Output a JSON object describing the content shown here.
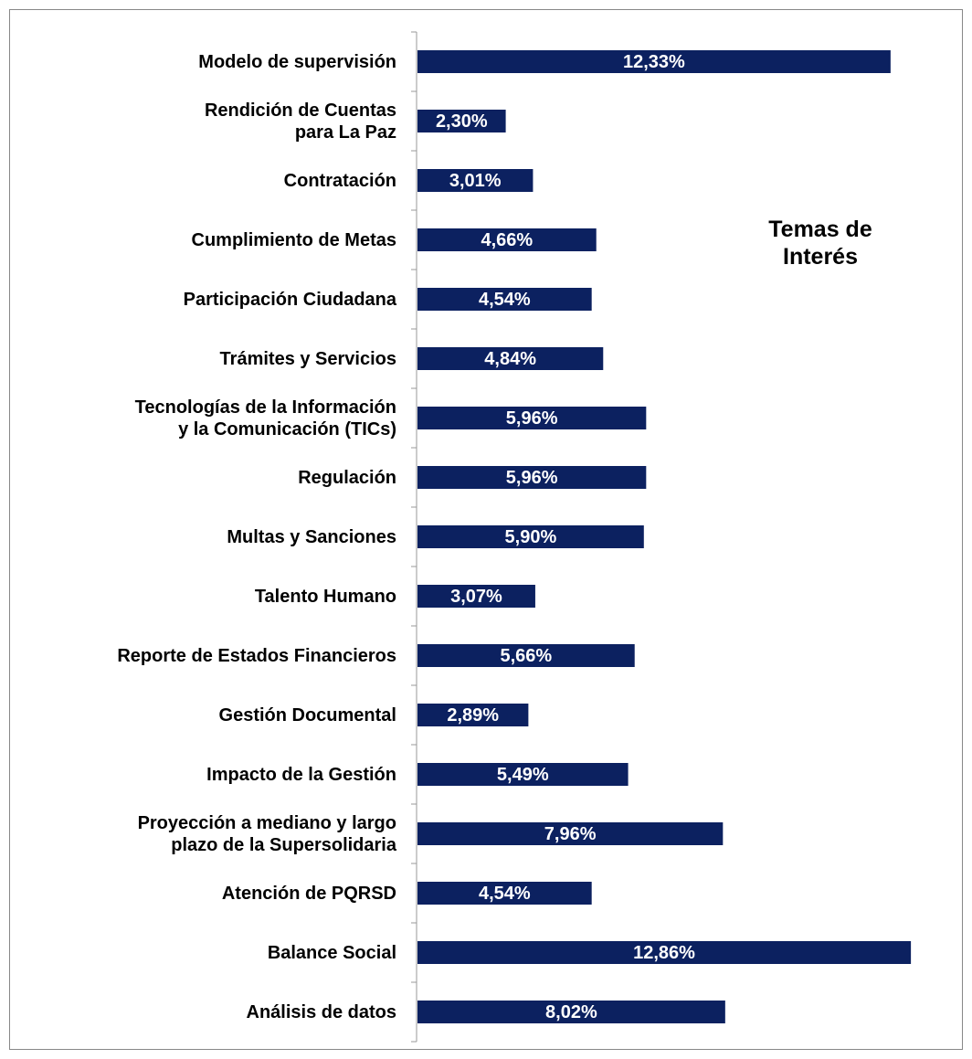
{
  "chart_data": {
    "type": "barh",
    "annotation": "Temas de\nInterés",
    "categories": [
      "Modelo de supervisión",
      "Rendición de Cuentas\npara La Paz",
      "Contratación",
      "Cumplimiento de Metas",
      "Participación Ciudadana",
      "Trámites y Servicios",
      "Tecnologías de la Información\ny la Comunicación (TICs)",
      "Regulación",
      "Multas y Sanciones",
      "Talento Humano",
      "Reporte de Estados Financieros",
      "Gestión Documental",
      "Impacto de la Gestión",
      "Proyección a mediano y largo\nplazo de la Supersolidaria",
      "Atención de PQRSD",
      "Balance Social",
      "Análisis de datos"
    ],
    "values": [
      12.33,
      2.3,
      3.01,
      4.66,
      4.54,
      4.84,
      5.96,
      5.96,
      5.9,
      3.07,
      5.66,
      2.89,
      5.49,
      7.96,
      4.54,
      12.86,
      8.02
    ],
    "value_labels": [
      "12,33%",
      "2,30%",
      "3,01%",
      "4,66%",
      "4,54%",
      "4,84%",
      "5,96%",
      "5,96%",
      "5,90%",
      "3,07%",
      "5,66%",
      "2,89%",
      "5,49%",
      "7,96%",
      "4,54%",
      "12,86%",
      "8,02%"
    ],
    "color": "#0c2160",
    "xlim": [
      0,
      13
    ]
  }
}
